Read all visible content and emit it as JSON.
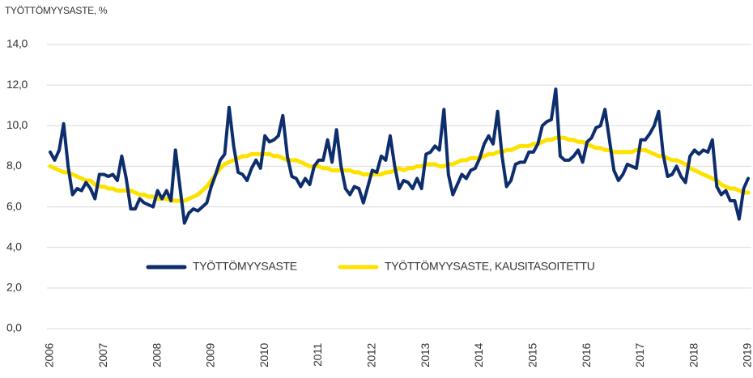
{
  "chart_data": {
    "type": "line",
    "title": "TYÖTTÖMYYSASTE, %",
    "categories": [
      "2006",
      null,
      null,
      null,
      null,
      null,
      null,
      null,
      null,
      null,
      null,
      null,
      "2007",
      null,
      null,
      null,
      null,
      null,
      null,
      null,
      null,
      null,
      null,
      null,
      "2008",
      null,
      null,
      null,
      null,
      null,
      null,
      null,
      null,
      null,
      null,
      null,
      "2009",
      null,
      null,
      null,
      null,
      null,
      null,
      null,
      null,
      null,
      null,
      null,
      "2010",
      null,
      null,
      null,
      null,
      null,
      null,
      null,
      null,
      null,
      null,
      null,
      "2011",
      null,
      null,
      null,
      null,
      null,
      null,
      null,
      null,
      null,
      null,
      null,
      "2012",
      null,
      null,
      null,
      null,
      null,
      null,
      null,
      null,
      null,
      null,
      null,
      "2013",
      null,
      null,
      null,
      null,
      null,
      null,
      null,
      null,
      null,
      null,
      null,
      "2014",
      null,
      null,
      null,
      null,
      null,
      null,
      null,
      null,
      null,
      null,
      null,
      "2015",
      null,
      null,
      null,
      null,
      null,
      null,
      null,
      null,
      null,
      null,
      null,
      "2016",
      null,
      null,
      null,
      null,
      null,
      null,
      null,
      null,
      null,
      null,
      null,
      "2017",
      null,
      null,
      null,
      null,
      null,
      null,
      null,
      null,
      null,
      null,
      null,
      "2018",
      null,
      null,
      null,
      null,
      null,
      null,
      null,
      null,
      null,
      null,
      null,
      "2019"
    ],
    "series": [
      {
        "name": "TYÖTTÖMYYSASTE",
        "color": "#0d2d6c",
        "values": [
          8.7,
          8.3,
          8.8,
          10.1,
          8.0,
          6.6,
          6.9,
          6.8,
          7.2,
          6.9,
          6.4,
          7.6,
          7.6,
          7.5,
          7.6,
          7.3,
          8.5,
          7.4,
          5.9,
          5.9,
          6.4,
          6.2,
          6.1,
          6.0,
          6.8,
          6.4,
          6.8,
          6.3,
          8.8,
          7.0,
          5.2,
          5.7,
          5.9,
          5.8,
          6.0,
          6.2,
          7.0,
          7.6,
          8.3,
          8.6,
          10.9,
          9.0,
          7.7,
          7.6,
          7.3,
          7.9,
          8.3,
          7.9,
          9.5,
          9.2,
          9.3,
          9.5,
          10.5,
          8.5,
          7.5,
          7.4,
          7.0,
          7.4,
          7.1,
          8.0,
          8.3,
          8.3,
          9.3,
          8.2,
          9.8,
          8.0,
          6.9,
          6.6,
          7.0,
          6.9,
          6.2,
          7.0,
          7.8,
          7.7,
          8.5,
          8.3,
          9.5,
          8.0,
          6.9,
          7.3,
          7.2,
          6.9,
          7.4,
          6.9,
          8.6,
          8.7,
          9.0,
          8.8,
          10.8,
          7.6,
          6.6,
          7.1,
          7.6,
          7.4,
          7.8,
          7.9,
          8.4,
          9.1,
          9.5,
          9.1,
          10.7,
          8.5,
          7.0,
          7.3,
          8.1,
          8.2,
          8.2,
          8.7,
          8.7,
          9.1,
          10.0,
          10.2,
          10.3,
          11.8,
          8.5,
          8.3,
          8.3,
          8.5,
          8.8,
          8.2,
          9.2,
          9.4,
          9.9,
          10.0,
          10.8,
          9.3,
          7.8,
          7.3,
          7.6,
          8.1,
          8.0,
          7.9,
          9.3,
          9.3,
          9.6,
          10.0,
          10.7,
          8.6,
          7.5,
          7.6,
          8.0,
          7.5,
          7.2,
          8.5,
          8.8,
          8.6,
          8.8,
          8.7,
          9.3,
          7.0,
          6.6,
          6.8,
          6.3,
          6.3,
          5.4,
          6.9,
          7.4
        ]
      },
      {
        "name": "TYÖTTÖMYYSASTE, KAUSITASOITETTU",
        "color": "#ffe100",
        "values": [
          8.0,
          7.9,
          7.8,
          7.7,
          7.7,
          7.6,
          7.5,
          7.4,
          7.3,
          7.3,
          7.1,
          7.0,
          7.0,
          6.9,
          6.9,
          6.8,
          6.8,
          6.8,
          6.8,
          6.7,
          6.6,
          6.6,
          6.5,
          6.5,
          6.4,
          6.4,
          6.4,
          6.3,
          6.3,
          6.3,
          6.3,
          6.4,
          6.5,
          6.6,
          6.8,
          7.0,
          7.3,
          7.6,
          7.9,
          8.1,
          8.2,
          8.3,
          8.4,
          8.5,
          8.5,
          8.6,
          8.6,
          8.6,
          8.6,
          8.6,
          8.5,
          8.5,
          8.4,
          8.3,
          8.3,
          8.3,
          8.2,
          8.1,
          8.0,
          8.0,
          8.0,
          7.9,
          7.9,
          7.8,
          7.8,
          7.8,
          7.8,
          7.8,
          7.7,
          7.7,
          7.6,
          7.6,
          7.6,
          7.6,
          7.6,
          7.7,
          7.7,
          7.8,
          7.9,
          7.8,
          7.9,
          7.9,
          8.0,
          8.0,
          8.1,
          8.1,
          8.1,
          8.0,
          8.0,
          8.1,
          8.1,
          8.2,
          8.3,
          8.3,
          8.4,
          8.4,
          8.4,
          8.5,
          8.6,
          8.6,
          8.7,
          8.7,
          8.8,
          8.8,
          8.9,
          9.0,
          9.0,
          9.0,
          9.1,
          9.1,
          9.2,
          9.3,
          9.3,
          9.4,
          9.4,
          9.4,
          9.3,
          9.3,
          9.2,
          9.2,
          9.1,
          9.0,
          8.9,
          8.9,
          8.8,
          8.8,
          8.7,
          8.7,
          8.7,
          8.7,
          8.7,
          8.8,
          8.8,
          8.8,
          8.7,
          8.6,
          8.5,
          8.5,
          8.4,
          8.3,
          8.3,
          8.2,
          8.1,
          7.9,
          7.8,
          7.7,
          7.6,
          7.5,
          7.4,
          7.3,
          7.1,
          7.0,
          6.9,
          6.9,
          6.8,
          6.7,
          6.7
        ]
      }
    ],
    "ylim": [
      0,
      14
    ],
    "yticks": [
      {
        "value": 0,
        "label": "0,0"
      },
      {
        "value": 2,
        "label": "2,0"
      },
      {
        "value": 4,
        "label": "4,0"
      },
      {
        "value": 6,
        "label": "6,0"
      },
      {
        "value": 8,
        "label": "8,0"
      },
      {
        "value": 10,
        "label": "10,0"
      },
      {
        "value": 12,
        "label": "12,0"
      },
      {
        "value": 14,
        "label": "14,0"
      }
    ],
    "grid": true,
    "legend": "lower center"
  }
}
